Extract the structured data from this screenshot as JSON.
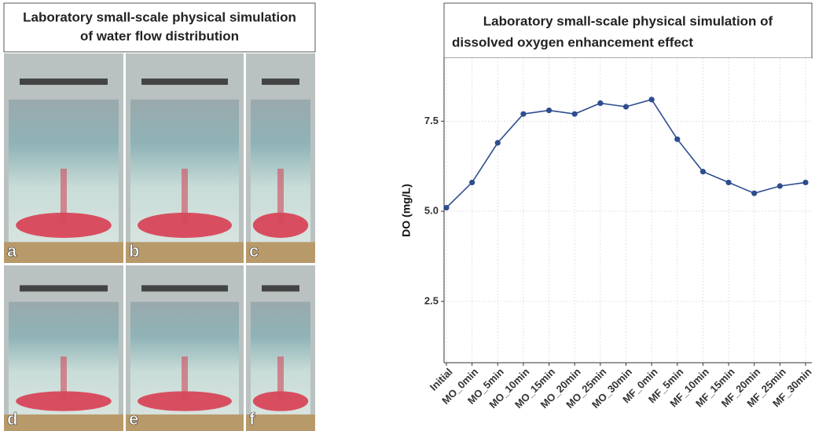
{
  "photo_panel": {
    "title": [
      "Laboratory small-scale physical simulation",
      "of water flow distribution"
    ],
    "labels": [
      "a",
      "b",
      "c",
      "d",
      "e",
      "f"
    ]
  },
  "chart_data": {
    "type": "line",
    "title": [
      "Laboratory small-scale physical simulation of",
      "dissolved oxygen enhancement effect"
    ],
    "y_label": "DO (mg/L)",
    "categories": [
      "Initial",
      "MO_0min",
      "MO_5min",
      "MO_10min",
      "MO_15min",
      "MO_20min",
      "MO_25min",
      "MO_30min",
      "MF_0min",
      "MF_5min",
      "MF_10min",
      "MF_15min",
      "MF_20min",
      "MF_25min",
      "MF_30min"
    ],
    "values": [
      5.1,
      5.8,
      6.9,
      7.7,
      7.8,
      7.7,
      8.0,
      7.9,
      8.1,
      7.0,
      6.1,
      5.8,
      5.5,
      5.7,
      5.8
    ],
    "color": "#2e4d8f",
    "ylim": [
      0.8,
      9.25
    ],
    "yticks": [
      2.5,
      {
        "value": 5,
        "label": "5.0"
      },
      7.5
    ],
    "grid": true
  }
}
